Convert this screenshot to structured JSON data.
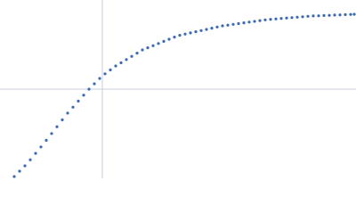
{
  "chart_data": {
    "type": "scatter",
    "color": "#3d6ab3",
    "xlim": [
      0,
      400
    ],
    "ylim": [
      0,
      200
    ],
    "crosshair": {
      "x": 115,
      "y": 100,
      "color": "#c9d2de"
    },
    "x": [
      16,
      22,
      28,
      34,
      40,
      46,
      52,
      58,
      64,
      70,
      76,
      82,
      88,
      94,
      100,
      106,
      112,
      118,
      124,
      130,
      136,
      142,
      148,
      154,
      160,
      166,
      172,
      178,
      184,
      190,
      196,
      202,
      208,
      214,
      220,
      226,
      232,
      238,
      244,
      250,
      256,
      262,
      268,
      274,
      280,
      286,
      292,
      298,
      304,
      310,
      316,
      322,
      328,
      334,
      340,
      346,
      352,
      358,
      364,
      370,
      376,
      382,
      388,
      394,
      398
    ],
    "y": [
      2,
      8,
      14,
      20.8,
      28,
      35.2,
      42.6,
      50.2,
      57.9,
      65.6,
      73.1,
      79.8,
      86.6,
      93.3,
      100,
      106,
      112,
      117.2,
      121.6,
      126,
      129.6,
      133.2,
      136.8,
      140.4,
      144,
      146.4,
      148.8,
      151.2,
      153.6,
      156,
      158.4,
      160.4,
      161.8,
      163.1,
      164.4,
      165.7,
      167,
      168.4,
      169.7,
      171,
      171.8,
      172.7,
      173.5,
      174.4,
      175.2,
      176,
      176.9,
      177.7,
      178.3,
      178.8,
      179.3,
      179.8,
      180.2,
      180.7,
      181.2,
      181.7,
      182.1,
      182.3,
      182.6,
      182.8,
      183.1,
      183.3,
      183.6,
      183.8,
      184
    ]
  }
}
